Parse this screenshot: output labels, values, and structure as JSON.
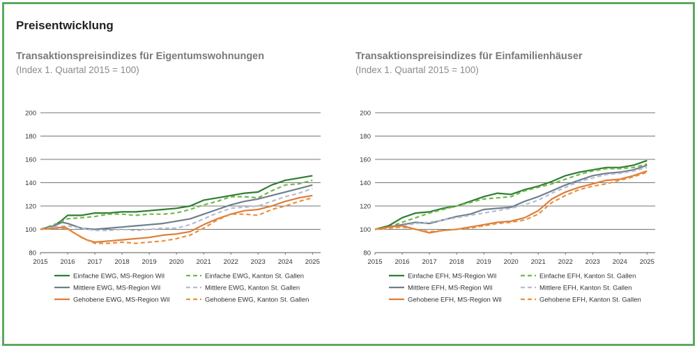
{
  "section_title": "Preisentwicklung",
  "colors": {
    "frame": "#5ea860",
    "einfache_region": "#2e7d32",
    "einfache_kanton": "#72b84a",
    "mittlere_region": "#6e7f8c",
    "mittlere_kanton": "#b4bdd0",
    "gehobene_region": "#e07b39",
    "gehobene_kanton": "#e8913e"
  },
  "chart_data": [
    {
      "type": "line",
      "title": "Transaktionspreisindizes für Eigentumswohnungen",
      "subtitle": "(Index 1. Quartal 2015 = 100)",
      "xlim": [
        2015,
        2025.3
      ],
      "ylim": [
        80,
        200
      ],
      "xticks": [
        "2015",
        "2016",
        "2017",
        "2018",
        "2019",
        "2020",
        "2021",
        "2022",
        "2023",
        "2024",
        "2025"
      ],
      "yticks": [
        "80",
        "100",
        "120",
        "140",
        "160",
        "180",
        "200"
      ],
      "grid": "horizontal",
      "legend_position": "bottom",
      "series": [
        {
          "name": "Einfache EWG, MS-Region Wil",
          "color_key": "einfache_region",
          "dashed": false,
          "x": [
            2015,
            2015.5,
            2015.8,
            2016,
            2016.5,
            2017,
            2017.5,
            2018,
            2018.5,
            2019,
            2019.5,
            2020,
            2020.5,
            2021,
            2021.5,
            2022,
            2022.5,
            2023,
            2023.5,
            2024,
            2024.5,
            2025
          ],
          "y": [
            100,
            103,
            108,
            112,
            112,
            114,
            114,
            115,
            115,
            116,
            117,
            118,
            120,
            125,
            127,
            129,
            131,
            132,
            138,
            142,
            144,
            146
          ]
        },
        {
          "name": "Einfache EWG, Kanton St. Gallen",
          "color_key": "einfache_kanton",
          "dashed": true,
          "x": [
            2015,
            2015.5,
            2016,
            2016.5,
            2017,
            2017.5,
            2018,
            2018.5,
            2019,
            2019.5,
            2020,
            2020.5,
            2021,
            2021.5,
            2022,
            2022.5,
            2023,
            2023.5,
            2024,
            2024.5,
            2025
          ],
          "y": [
            100,
            104,
            109,
            110,
            111,
            113,
            113,
            112,
            113,
            113,
            114,
            117,
            121,
            124,
            128,
            128,
            127,
            133,
            138,
            139,
            142
          ]
        },
        {
          "name": "Mittlere EWG, MS-Region Wil",
          "color_key": "mittlere_region",
          "dashed": false,
          "x": [
            2015,
            2015.5,
            2015.8,
            2016,
            2016.5,
            2017,
            2017.5,
            2018,
            2018.5,
            2019,
            2019.5,
            2020,
            2020.5,
            2021,
            2021.5,
            2022,
            2022.5,
            2023,
            2023.5,
            2024,
            2024.5,
            2025
          ],
          "y": [
            100,
            103,
            106,
            105,
            101,
            100,
            101,
            102,
            103,
            104,
            105,
            107,
            109,
            113,
            117,
            121,
            124,
            126,
            129,
            132,
            135,
            138
          ]
        },
        {
          "name": "Mittlere EWG, Kanton St. Gallen",
          "color_key": "mittlere_kanton",
          "dashed": true,
          "x": [
            2015,
            2015.5,
            2016,
            2016.5,
            2017,
            2017.5,
            2018,
            2018.5,
            2019,
            2019.5,
            2020,
            2020.5,
            2021,
            2021.5,
            2022,
            2022.5,
            2023,
            2023.5,
            2024,
            2024.5,
            2025
          ],
          "y": [
            100,
            102,
            103,
            101,
            99,
            99,
            100,
            99,
            100,
            101,
            101,
            104,
            109,
            114,
            118,
            119,
            120,
            124,
            128,
            131,
            135
          ]
        },
        {
          "name": "Gehobene EWG, MS-Region Wil",
          "color_key": "gehobene_region",
          "dashed": false,
          "x": [
            2015,
            2015.5,
            2015.9,
            2016.3,
            2016.7,
            2017,
            2017.5,
            2018,
            2018.5,
            2019,
            2019.5,
            2020,
            2020.5,
            2021,
            2021.5,
            2022,
            2022.5,
            2023,
            2023.5,
            2024,
            2024.5,
            2025
          ],
          "y": [
            100,
            101,
            102,
            96,
            91,
            89,
            90,
            91,
            92,
            93,
            95,
            96,
            98,
            104,
            109,
            113,
            116,
            117,
            120,
            124,
            127,
            129
          ]
        },
        {
          "name": "Gehobene EWG, Kanton St. Gallen",
          "color_key": "gehobene_kanton",
          "dashed": true,
          "x": [
            2015,
            2015.5,
            2016,
            2016.5,
            2017,
            2017.5,
            2018,
            2018.5,
            2019,
            2019.5,
            2020,
            2020.5,
            2021,
            2021.5,
            2022,
            2022.5,
            2023,
            2023.5,
            2024,
            2024.5,
            2025
          ],
          "y": [
            100,
            101,
            101,
            93,
            88,
            88,
            89,
            88,
            89,
            90,
            92,
            95,
            101,
            108,
            113,
            113,
            112,
            117,
            120,
            124,
            127
          ]
        }
      ]
    },
    {
      "type": "line",
      "title": "Transaktionspreisindizes für Einfamilienhäuser",
      "subtitle": "(Index 1. Quartal 2015 = 100)",
      "xlim": [
        2015,
        2025.3
      ],
      "ylim": [
        80,
        200
      ],
      "xticks": [
        "2015",
        "2016",
        "2017",
        "2018",
        "2019",
        "2020",
        "2021",
        "2022",
        "2023",
        "2024",
        "2025"
      ],
      "yticks": [
        "80",
        "100",
        "120",
        "140",
        "160",
        "180",
        "200"
      ],
      "grid": "horizontal",
      "legend_position": "bottom",
      "series": [
        {
          "name": "Einfache EFH, MS-Region Wil",
          "color_key": "einfache_region",
          "dashed": false,
          "x": [
            2015,
            2015.5,
            2016,
            2016.5,
            2017,
            2017.5,
            2018,
            2018.5,
            2019,
            2019.5,
            2020,
            2020.5,
            2021,
            2021.5,
            2022,
            2022.5,
            2023,
            2023.5,
            2024,
            2024.5,
            2025
          ],
          "y": [
            100,
            103,
            110,
            114,
            115,
            118,
            120,
            124,
            128,
            131,
            130,
            134,
            137,
            141,
            146,
            149,
            151,
            153,
            153,
            155,
            159
          ]
        },
        {
          "name": "Einfache EFH, Kanton St. Gallen",
          "color_key": "einfache_kanton",
          "dashed": true,
          "x": [
            2015,
            2015.5,
            2016,
            2016.5,
            2017,
            2017.5,
            2018,
            2018.5,
            2019,
            2019.5,
            2020,
            2020.5,
            2021,
            2021.5,
            2022,
            2022.5,
            2023,
            2023.5,
            2024,
            2024.5,
            2025
          ],
          "y": [
            100,
            102,
            106,
            110,
            114,
            117,
            120,
            123,
            126,
            127,
            128,
            133,
            136,
            139,
            143,
            147,
            150,
            152,
            152,
            153,
            156
          ]
        },
        {
          "name": "Mittlere EFH, MS-Region Wil",
          "color_key": "mittlere_region",
          "dashed": false,
          "x": [
            2015,
            2015.5,
            2016,
            2016.5,
            2017,
            2017.5,
            2018,
            2018.5,
            2019,
            2019.5,
            2020,
            2020.5,
            2021,
            2021.5,
            2022,
            2022.5,
            2023,
            2023.5,
            2024,
            2024.5,
            2025
          ],
          "y": [
            100,
            102,
            104,
            106,
            105,
            108,
            111,
            113,
            117,
            118,
            119,
            124,
            128,
            133,
            138,
            142,
            146,
            148,
            149,
            151,
            155
          ]
        },
        {
          "name": "Mittlere EFH, Kanton St. Gallen",
          "color_key": "mittlere_kanton",
          "dashed": true,
          "x": [
            2015,
            2015.5,
            2016,
            2016.5,
            2017,
            2017.5,
            2018,
            2018.5,
            2019,
            2019.5,
            2020,
            2020.5,
            2021,
            2021.5,
            2022,
            2022.5,
            2023,
            2023.5,
            2024,
            2024.5,
            2025
          ],
          "y": [
            100,
            101,
            103,
            105,
            106,
            108,
            110,
            112,
            114,
            116,
            118,
            121,
            125,
            131,
            136,
            141,
            144,
            147,
            148,
            150,
            153
          ]
        },
        {
          "name": "Gehobene EFH, MS-Region Wil",
          "color_key": "gehobene_region",
          "dashed": false,
          "x": [
            2015,
            2015.5,
            2016,
            2016.5,
            2017,
            2017.5,
            2018,
            2018.5,
            2019,
            2019.5,
            2020,
            2020.5,
            2021,
            2021.5,
            2022,
            2022.5,
            2023,
            2023.5,
            2024,
            2024.5,
            2025
          ],
          "y": [
            100,
            102,
            103,
            100,
            97,
            99,
            100,
            102,
            104,
            106,
            107,
            110,
            116,
            126,
            132,
            136,
            139,
            142,
            143,
            146,
            150
          ]
        },
        {
          "name": "Gehobene EFH, Kanton St. Gallen",
          "color_key": "gehobene_kanton",
          "dashed": true,
          "x": [
            2015,
            2015.5,
            2016,
            2016.5,
            2017,
            2017.5,
            2018,
            2018.5,
            2019,
            2019.5,
            2020,
            2020.5,
            2021,
            2021.5,
            2022,
            2022.5,
            2023,
            2023.5,
            2024,
            2024.5,
            2025
          ],
          "y": [
            100,
            101,
            102,
            100,
            98,
            99,
            100,
            101,
            103,
            105,
            106,
            108,
            113,
            123,
            129,
            134,
            137,
            139,
            142,
            145,
            149
          ]
        }
      ]
    }
  ]
}
